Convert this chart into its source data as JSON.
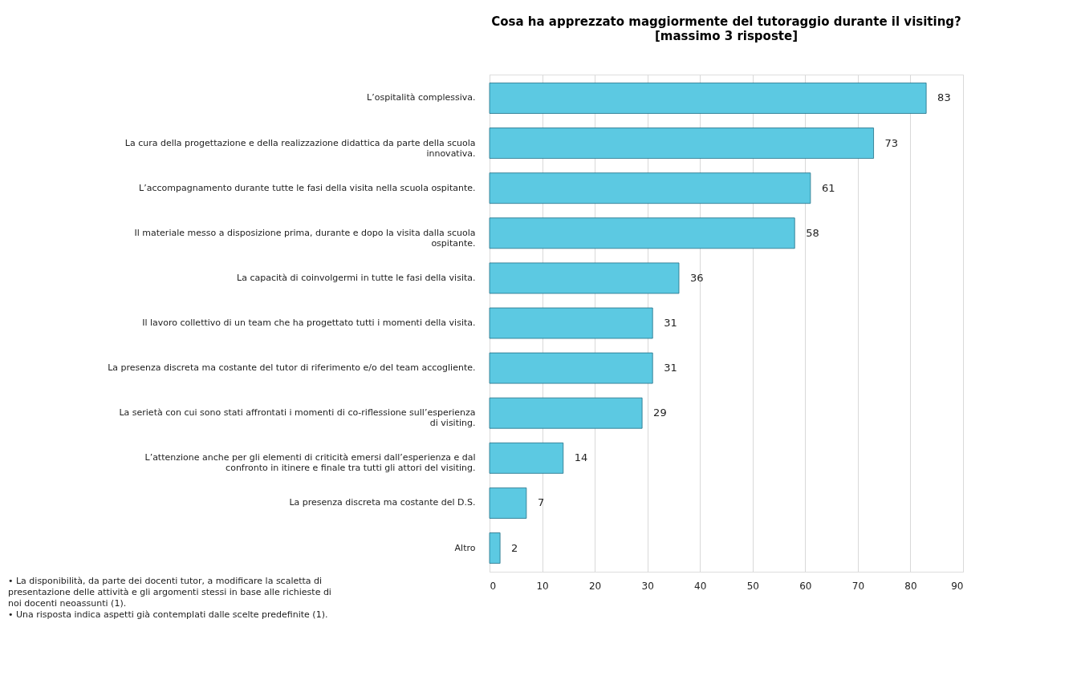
{
  "chart_data": {
    "type": "bar",
    "orientation": "horizontal",
    "title": "Cosa ha apprezzato maggiormente del tutoraggio durante il visiting?",
    "subtitle": "[massimo 3 risposte]",
    "categories": [
      "L’ospitalità complessiva.",
      "La cura della progettazione e della realizzazione didattica da parte della scuola innovativa.",
      "L’accompagnamento durante tutte le fasi della visita nella scuola ospitante.",
      "Il materiale messo a disposizione prima, durante e dopo la visita dalla scuola ospitante.",
      "La capacità di coinvolgermi in tutte le fasi della visita.",
      "Il lavoro collettivo di un team che ha progettato tutti i momenti della visita.",
      "La presenza discreta ma costante del tutor di riferimento e/o del team accogliente.",
      "La serietà con cui sono stati affrontati i momenti di co-riflessione sull’esperienza di visiting.",
      "L’attenzione anche per gli elementi di criticità emersi dall’esperienza e dal confronto in itinere e finale tra tutti gli attori del visiting.",
      "La presenza discreta ma costante del D.S.",
      "Altro"
    ],
    "values": [
      83,
      73,
      61,
      58,
      36,
      31,
      31,
      29,
      14,
      7,
      2
    ],
    "color": "#5cc9e2",
    "xlim": [
      0,
      90
    ],
    "xticks": [
      0,
      10,
      20,
      30,
      40,
      50,
      60,
      70,
      80,
      90
    ],
    "grid": "x",
    "data_labels": true,
    "annotations": [
      "• La disponibilità, da parte dei docenti tutor, a modificare la scaletta di presentazione delle attività e gli argomenti stessi in base alle richieste di noi docenti neoassunti (1).",
      "• Una risposta indica aspetti già contemplati dalle scelte predefinite (1)."
    ]
  }
}
